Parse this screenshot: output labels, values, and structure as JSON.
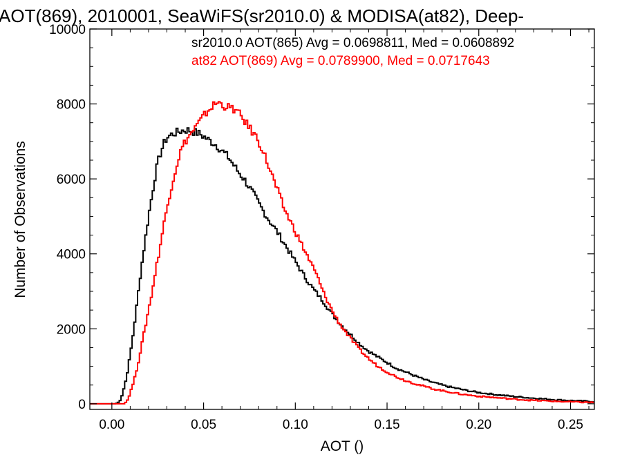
{
  "chart_data": {
    "type": "line",
    "title": "AOT(869), 2010001, SeaWiFS(sr2010.0) & MODISA(at82), Deep-",
    "xlabel": "AOT ()",
    "ylabel": "Number of Observations",
    "xlim": [
      -0.012,
      0.263
    ],
    "ylim": [
      -150,
      10000
    ],
    "xticks": [
      0.0,
      0.05,
      0.1,
      0.15,
      0.2,
      0.25
    ],
    "xtick_labels": [
      "0.00",
      "0.05",
      "0.10",
      "0.15",
      "0.20",
      "0.25"
    ],
    "yticks": [
      0,
      2000,
      4000,
      6000,
      8000,
      10000
    ],
    "ytick_labels": [
      "0",
      "2000",
      "4000",
      "6000",
      "8000",
      "10000"
    ],
    "grid": false,
    "step": true,
    "annotations": [
      {
        "text": "sr2010.0 AOT(865) Avg = 0.0698811, Med = 0.0608892",
        "color": "#000000"
      },
      {
        "text": "at82 AOT(869) Avg = 0.0789900, Med = 0.0717643",
        "color": "#ff0000"
      }
    ],
    "series": [
      {
        "color": "#000000",
        "points": [
          [
            -0.012,
            0
          ],
          [
            0.0,
            0
          ],
          [
            0.002,
            0
          ],
          [
            0.004,
            50
          ],
          [
            0.005,
            150
          ],
          [
            0.006,
            300
          ],
          [
            0.008,
            700
          ],
          [
            0.01,
            1300
          ],
          [
            0.012,
            2000
          ],
          [
            0.014,
            2800
          ],
          [
            0.016,
            3600
          ],
          [
            0.018,
            4300
          ],
          [
            0.02,
            5000
          ],
          [
            0.022,
            5600
          ],
          [
            0.024,
            6200
          ],
          [
            0.026,
            6600
          ],
          [
            0.028,
            6900
          ],
          [
            0.03,
            7100
          ],
          [
            0.033,
            7200
          ],
          [
            0.036,
            7250
          ],
          [
            0.039,
            7300
          ],
          [
            0.042,
            7300
          ],
          [
            0.045,
            7250
          ],
          [
            0.048,
            7200
          ],
          [
            0.051,
            7100
          ],
          [
            0.054,
            7000
          ],
          [
            0.057,
            6900
          ],
          [
            0.06,
            6750
          ],
          [
            0.064,
            6550
          ],
          [
            0.068,
            6250
          ],
          [
            0.072,
            6000
          ],
          [
            0.076,
            5700
          ],
          [
            0.08,
            5350
          ],
          [
            0.085,
            4950
          ],
          [
            0.09,
            4600
          ],
          [
            0.095,
            4200
          ],
          [
            0.1,
            3800
          ],
          [
            0.105,
            3400
          ],
          [
            0.11,
            3050
          ],
          [
            0.115,
            2750
          ],
          [
            0.12,
            2400
          ],
          [
            0.125,
            2100
          ],
          [
            0.13,
            1850
          ],
          [
            0.135,
            1600
          ],
          [
            0.14,
            1400
          ],
          [
            0.145,
            1250
          ],
          [
            0.15,
            1100
          ],
          [
            0.155,
            950
          ],
          [
            0.16,
            850
          ],
          [
            0.165,
            750
          ],
          [
            0.17,
            650
          ],
          [
            0.175,
            570
          ],
          [
            0.18,
            500
          ],
          [
            0.185,
            440
          ],
          [
            0.19,
            390
          ],
          [
            0.195,
            340
          ],
          [
            0.2,
            300
          ],
          [
            0.21,
            240
          ],
          [
            0.22,
            190
          ],
          [
            0.23,
            150
          ],
          [
            0.24,
            115
          ],
          [
            0.25,
            85
          ],
          [
            0.263,
            60
          ]
        ]
      },
      {
        "color": "#ff0000",
        "points": [
          [
            -0.012,
            0
          ],
          [
            0.004,
            0
          ],
          [
            0.006,
            0
          ],
          [
            0.008,
            50
          ],
          [
            0.009,
            150
          ],
          [
            0.01,
            300
          ],
          [
            0.012,
            600
          ],
          [
            0.014,
            1000
          ],
          [
            0.016,
            1500
          ],
          [
            0.018,
            2000
          ],
          [
            0.02,
            2500
          ],
          [
            0.022,
            3000
          ],
          [
            0.024,
            3600
          ],
          [
            0.026,
            4100
          ],
          [
            0.028,
            4700
          ],
          [
            0.03,
            5200
          ],
          [
            0.032,
            5700
          ],
          [
            0.034,
            6100
          ],
          [
            0.036,
            6500
          ],
          [
            0.038,
            6800
          ],
          [
            0.04,
            7000
          ],
          [
            0.043,
            7200
          ],
          [
            0.046,
            7400
          ],
          [
            0.049,
            7600
          ],
          [
            0.052,
            7800
          ],
          [
            0.055,
            7950
          ],
          [
            0.058,
            8050
          ],
          [
            0.061,
            7950
          ],
          [
            0.064,
            7900
          ],
          [
            0.067,
            7850
          ],
          [
            0.07,
            7700
          ],
          [
            0.073,
            7500
          ],
          [
            0.076,
            7300
          ],
          [
            0.079,
            7100
          ],
          [
            0.082,
            6800
          ],
          [
            0.085,
            6400
          ],
          [
            0.088,
            6000
          ],
          [
            0.091,
            5600
          ],
          [
            0.094,
            5200
          ],
          [
            0.097,
            4900
          ],
          [
            0.1,
            4600
          ],
          [
            0.103,
            4300
          ],
          [
            0.106,
            4000
          ],
          [
            0.109,
            3700
          ],
          [
            0.112,
            3400
          ],
          [
            0.115,
            3000
          ],
          [
            0.118,
            2700
          ],
          [
            0.121,
            2400
          ],
          [
            0.124,
            2150
          ],
          [
            0.127,
            1950
          ],
          [
            0.13,
            1750
          ],
          [
            0.135,
            1450
          ],
          [
            0.14,
            1200
          ],
          [
            0.145,
            1000
          ],
          [
            0.15,
            850
          ],
          [
            0.155,
            720
          ],
          [
            0.16,
            620
          ],
          [
            0.165,
            540
          ],
          [
            0.17,
            470
          ],
          [
            0.175,
            400
          ],
          [
            0.18,
            350
          ],
          [
            0.19,
            260
          ],
          [
            0.2,
            200
          ],
          [
            0.21,
            160
          ],
          [
            0.22,
            120
          ],
          [
            0.23,
            90
          ],
          [
            0.24,
            70
          ],
          [
            0.25,
            50
          ],
          [
            0.263,
            35
          ]
        ]
      }
    ]
  }
}
